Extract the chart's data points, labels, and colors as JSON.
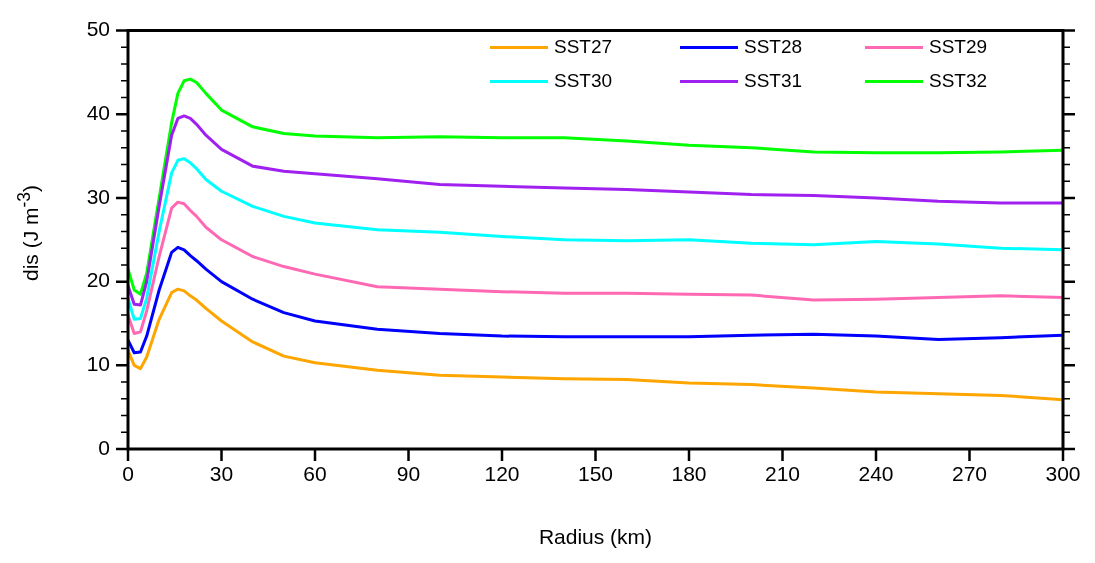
{
  "chart_data": {
    "type": "line",
    "xlabel": "Radius (km)",
    "ylabel": "dis (J m$^{-3}$)",
    "x": [
      0,
      2,
      4,
      6,
      10,
      14,
      16,
      18,
      20,
      22,
      25,
      30,
      40,
      50,
      60,
      80,
      100,
      120,
      140,
      160,
      180,
      200,
      220,
      240,
      260,
      280,
      300
    ],
    "xlim": [
      0,
      300
    ],
    "xticks": [
      0,
      30,
      60,
      90,
      120,
      150,
      180,
      210,
      240,
      270,
      300
    ],
    "ylim": [
      0,
      50
    ],
    "yticks": [
      0,
      10,
      20,
      30,
      40,
      50
    ],
    "grid": false,
    "legend": "top right",
    "marker": "none",
    "line_style": "solid",
    "series": [
      {
        "name": "SST27",
        "color": "#ffa500",
        "values": [
          11.8,
          10,
          9.6,
          11,
          15.5,
          18.7,
          19.1,
          18.9,
          18.3,
          17.8,
          16.8,
          15.3,
          12.8,
          11.1,
          10.3,
          9.4,
          8.8,
          8.6,
          8.4,
          8.3,
          7.9,
          7.7,
          7.3,
          6.8,
          6.6,
          6.4,
          5.9
        ]
      },
      {
        "name": "SST28",
        "color": "#0000ff",
        "values": [
          13,
          11.5,
          11.6,
          13.5,
          19,
          23.5,
          24.1,
          23.8,
          23.1,
          22.5,
          21.5,
          20,
          17.9,
          16.3,
          15.3,
          14.3,
          13.8,
          13.5,
          13.4,
          13.4,
          13.4,
          13.6,
          13.7,
          13.5,
          13.1,
          13.3,
          13.6
        ]
      },
      {
        "name": "SST29",
        "color": "#ff69b4",
        "values": [
          16,
          13.8,
          14,
          16.5,
          23,
          28.8,
          29.5,
          29.3,
          28.5,
          27.8,
          26.5,
          25,
          23,
          21.8,
          20.9,
          19.4,
          19.1,
          18.8,
          18.6,
          18.6,
          18.5,
          18.4,
          17.8,
          17.9,
          18.1,
          18.3,
          18.1
        ]
      },
      {
        "name": "SST30",
        "color": "#00ffff",
        "values": [
          18,
          15.5,
          15.6,
          18,
          26,
          33,
          34.5,
          34.7,
          34.2,
          33.5,
          32.2,
          30.8,
          29,
          27.8,
          27,
          26.2,
          25.9,
          25.4,
          25,
          24.9,
          25,
          24.6,
          24.4,
          24.8,
          24.5,
          24,
          23.8
        ]
      },
      {
        "name": "SST31",
        "color": "#a020f0",
        "values": [
          19.5,
          17.3,
          17.2,
          20,
          29,
          37.5,
          39.5,
          39.8,
          39.5,
          38.8,
          37.5,
          35.8,
          33.8,
          33.2,
          32.9,
          32.3,
          31.6,
          31.4,
          31.2,
          31,
          30.7,
          30.4,
          30.3,
          30,
          29.6,
          29.4,
          29.4
        ]
      },
      {
        "name": "SST32",
        "color": "#00ff00",
        "values": [
          21.5,
          19,
          18.5,
          21,
          30,
          39,
          42.5,
          44,
          44.2,
          43.8,
          42.5,
          40.5,
          38.5,
          37.7,
          37.4,
          37.2,
          37.3,
          37.2,
          37.2,
          36.8,
          36.3,
          36,
          35.5,
          35.4,
          35.4,
          35.5,
          35.7
        ]
      }
    ]
  }
}
